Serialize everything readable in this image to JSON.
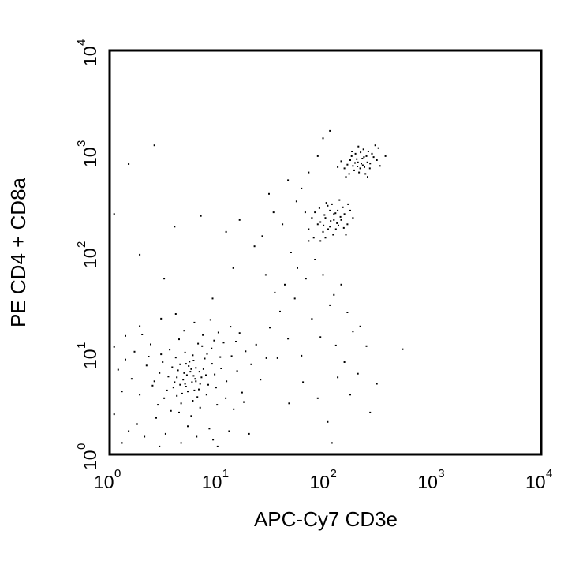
{
  "chart_data": {
    "type": "scatter",
    "title": "",
    "xlabel": "APC-Cy7 CD3e",
    "ylabel": "PE CD4 + CD8a",
    "xscale": "log",
    "yscale": "log",
    "xlim": [
      1,
      10000
    ],
    "ylim": [
      1,
      10000
    ],
    "grid": false,
    "legend": "none",
    "point_color": "#000000",
    "x_ticks": [
      {
        "base": "10",
        "exp": "0",
        "value": 1
      },
      {
        "base": "10",
        "exp": "1",
        "value": 10
      },
      {
        "base": "10",
        "exp": "2",
        "value": 100
      },
      {
        "base": "10",
        "exp": "3",
        "value": 1000
      },
      {
        "base": "10",
        "exp": "4",
        "value": 10000
      }
    ],
    "y_ticks": [
      {
        "base": "10",
        "exp": "0",
        "value": 1
      },
      {
        "base": "10",
        "exp": "1",
        "value": 10
      },
      {
        "base": "10",
        "exp": "2",
        "value": 100
      },
      {
        "base": "10",
        "exp": "3",
        "value": 1000
      },
      {
        "base": "10",
        "exp": "4",
        "value": 10000
      }
    ],
    "populations": [
      {
        "center_x": 6,
        "center_y": 6,
        "share": "majority"
      },
      {
        "center_x": 115,
        "center_y": 220,
        "share": "minor"
      },
      {
        "center_x": 200,
        "center_y": 780,
        "share": "minor"
      }
    ],
    "points": [
      [
        5.2,
        6.1
      ],
      [
        4.8,
        5.5
      ],
      [
        6.3,
        7.2
      ],
      [
        3.9,
        4.6
      ],
      [
        7.1,
        5.8
      ],
      [
        5.5,
        8.3
      ],
      [
        4.2,
        3.8
      ],
      [
        6.8,
        6.6
      ],
      [
        3.5,
        5.9
      ],
      [
        8.2,
        4.9
      ],
      [
        5.9,
        3.4
      ],
      [
        4.5,
        7.8
      ],
      [
        7.6,
        8.9
      ],
      [
        2.9,
        6.4
      ],
      [
        6.1,
        4.3
      ],
      [
        9.4,
        6.2
      ],
      [
        3.2,
        3.6
      ],
      [
        5.0,
        10.2
      ],
      [
        7.9,
        3.9
      ],
      [
        4.1,
        9.1
      ],
      [
        2.5,
        4.8
      ],
      [
        6.6,
        12.5
      ],
      [
        10.8,
        7.1
      ],
      [
        3.7,
        2.7
      ],
      [
        5.7,
        2.4
      ],
      [
        8.8,
        11.2
      ],
      [
        2.2,
        7.6
      ],
      [
        12.1,
        5.3
      ],
      [
        4.4,
        13.8
      ],
      [
        6.9,
        2.9
      ],
      [
        1.9,
        3.9
      ],
      [
        9.9,
        3.1
      ],
      [
        3.0,
        9.8
      ],
      [
        13.5,
        9.4
      ],
      [
        2.7,
        2.3
      ],
      [
        7.3,
        15.2
      ],
      [
        1.6,
        5.6
      ],
      [
        11.4,
        12.8
      ],
      [
        5.3,
        1.9
      ],
      [
        15.2,
        6.7
      ],
      [
        1.4,
        8.7
      ],
      [
        8.4,
        1.8
      ],
      [
        4.9,
        16.8
      ],
      [
        16.9,
        4.1
      ],
      [
        1.8,
        2.0
      ],
      [
        18.2,
        10.5
      ],
      [
        2.4,
        12.3
      ],
      [
        6.4,
        1.5
      ],
      [
        1.3,
        4.2
      ],
      [
        10.2,
        16.1
      ],
      [
        3.3,
        1.6
      ],
      [
        14.1,
        2.8
      ],
      [
        1.2,
        6.9
      ],
      [
        20.5,
        7.8
      ],
      [
        2.0,
        15.4
      ],
      [
        9.1,
        1.4
      ],
      [
        1.5,
        1.7
      ],
      [
        4.6,
        1.3
      ],
      [
        12.8,
        1.7
      ],
      [
        1.1,
        11.6
      ],
      [
        5.1,
        4.7
      ],
      [
        5.8,
        5.2
      ],
      [
        4.3,
        6.8
      ],
      [
        6.7,
        4.4
      ],
      [
        3.8,
        7.3
      ],
      [
        7.4,
        7.0
      ],
      [
        4.7,
        4.0
      ],
      [
        6.0,
        8.5
      ],
      [
        5.6,
        6.6
      ],
      [
        4.0,
        5.2
      ],
      [
        8.9,
        7.9
      ],
      [
        3.4,
        4.3
      ],
      [
        6.2,
        5.6
      ],
      [
        5.4,
        7.5
      ],
      [
        7.8,
        6.1
      ],
      [
        4.6,
        3.2
      ],
      [
        3.1,
        8.2
      ],
      [
        9.7,
        4.6
      ],
      [
        5.9,
        9.6
      ],
      [
        2.6,
        5.3
      ],
      [
        6.5,
        3.7
      ],
      [
        8.0,
        9.9
      ],
      [
        3.6,
        10.9
      ],
      [
        10.6,
        9.2
      ],
      [
        2.8,
        3.1
      ],
      [
        7.2,
        11.8
      ],
      [
        4.4,
        2.6
      ],
      [
        11.9,
        3.6
      ],
      [
        2.3,
        9.3
      ],
      [
        9.3,
        13.4
      ],
      [
        5.0,
        5.0
      ],
      [
        5.3,
        4.2
      ],
      [
        4.9,
        6.4
      ],
      [
        6.0,
        6.0
      ],
      [
        5.7,
        7.0
      ],
      [
        4.5,
        4.9
      ],
      [
        6.3,
        5.3
      ],
      [
        5.1,
        7.9
      ],
      [
        4.2,
        5.8
      ],
      [
        6.9,
        5.0
      ],
      [
        1.7,
        10.4
      ],
      [
        14.8,
        13.1
      ],
      [
        2.1,
        1.5
      ],
      [
        17.5,
        3.3
      ],
      [
        1.3,
        1.3
      ],
      [
        22.8,
        12.2
      ],
      [
        1.9,
        18.6
      ],
      [
        13.2,
        18.4
      ],
      [
        3.0,
        22.1
      ],
      [
        8.6,
        21.5
      ],
      [
        25.0,
        5.5
      ],
      [
        1.1,
        2.5
      ],
      [
        19.6,
        1.6
      ],
      [
        6.1,
        20.2
      ],
      [
        1.4,
        14.9
      ],
      [
        10.0,
        1.2
      ],
      [
        2.9,
        1.2
      ],
      [
        16.0,
        15.9
      ],
      [
        28.4,
        9.0
      ],
      [
        4.1,
        24.6
      ],
      [
        30.5,
        18.0
      ],
      [
        45.0,
        14.0
      ],
      [
        38.0,
        26.0
      ],
      [
        60.0,
        9.5
      ],
      [
        52.0,
        35.0
      ],
      [
        75.0,
        22.0
      ],
      [
        42.0,
        48.0
      ],
      [
        90.0,
        14.5
      ],
      [
        66.0,
        55.0
      ],
      [
        110.0,
        30.0
      ],
      [
        55.0,
        70.0
      ],
      [
        34.0,
        40.0
      ],
      [
        80.0,
        85.0
      ],
      [
        125.0,
        12.0
      ],
      [
        48.0,
        100.0
      ],
      [
        140.0,
        48.0
      ],
      [
        70.0,
        130.0
      ],
      [
        95.0,
        60.0
      ],
      [
        36.0,
        9.0
      ],
      [
        62.0,
        5.2
      ],
      [
        85.0,
        3.6
      ],
      [
        105.0,
        2.1
      ],
      [
        46.0,
        3.2
      ],
      [
        130.0,
        5.8
      ],
      [
        150.0,
        8.2
      ],
      [
        170.0,
        3.9
      ],
      [
        200.0,
        6.3
      ],
      [
        240.0,
        11.8
      ],
      [
        180.0,
        16.5
      ],
      [
        115.0,
        1.3
      ],
      [
        260.0,
        2.6
      ],
      [
        160.0,
        25.5
      ],
      [
        120.0,
        38.0
      ],
      [
        300.0,
        5.0
      ],
      [
        210.0,
        18.5
      ],
      [
        520.0,
        11.0
      ],
      [
        28.0,
        60.0
      ],
      [
        22.0,
        115.0
      ],
      [
        16.0,
        210.0
      ],
      [
        12.0,
        160.0
      ],
      [
        7.0,
        230.0
      ],
      [
        4.0,
        180.0
      ],
      [
        1.5,
        750.0
      ],
      [
        2.6,
        1150.0
      ],
      [
        1.1,
        240.0
      ],
      [
        1.9,
        95.0
      ],
      [
        3.2,
        55.0
      ],
      [
        9.0,
        35.0
      ],
      [
        14.0,
        70.0
      ],
      [
        26.0,
        145.0
      ],
      [
        33.0,
        250.0
      ],
      [
        40.0,
        190.0
      ],
      [
        54.0,
        320.0
      ],
      [
        60.0,
        430.0
      ],
      [
        70.0,
        620.0
      ],
      [
        45.0,
        520.0
      ],
      [
        30.0,
        380.0
      ],
      [
        85.0,
        900.0
      ],
      [
        95.0,
        1350.0
      ],
      [
        110.0,
        1600.0
      ],
      [
        100.0,
        220.0
      ],
      [
        120.0,
        240.0
      ],
      [
        90.0,
        200.0
      ],
      [
        130.0,
        260.0
      ],
      [
        110.0,
        180.0
      ],
      [
        140.0,
        210.0
      ],
      [
        80.0,
        250.0
      ],
      [
        105.0,
        290.0
      ],
      [
        125.0,
        170.0
      ],
      [
        95.0,
        160.0
      ],
      [
        150.0,
        240.0
      ],
      [
        115.0,
        300.0
      ],
      [
        85.0,
        190.0
      ],
      [
        135.0,
        330.0
      ],
      [
        100.0,
        140.0
      ],
      [
        160.0,
        190.0
      ],
      [
        75.0,
        220.0
      ],
      [
        145.0,
        280.0
      ],
      [
        120.0,
        210.0
      ],
      [
        110.0,
        260.0
      ],
      [
        90.0,
        130.0
      ],
      [
        170.0,
        260.0
      ],
      [
        70.0,
        170.0
      ],
      [
        155.0,
        150.0
      ],
      [
        128.0,
        195.0
      ],
      [
        98.0,
        235.0
      ],
      [
        112.0,
        205.0
      ],
      [
        138.0,
        225.0
      ],
      [
        88.0,
        275.0
      ],
      [
        118.0,
        150.0
      ],
      [
        180.0,
        220.0
      ],
      [
        65.0,
        250.0
      ],
      [
        102.0,
        310.0
      ],
      [
        148.0,
        175.0
      ],
      [
        78.0,
        140.0
      ],
      [
        124.0,
        245.0
      ],
      [
        96.0,
        185.0
      ],
      [
        132.0,
        185.0
      ],
      [
        106.0,
        170.0
      ],
      [
        162.0,
        300.0
      ],
      [
        200.0,
        780.0
      ],
      [
        220.0,
        850.0
      ],
      [
        180.0,
        720.0
      ],
      [
        240.0,
        900.0
      ],
      [
        210.0,
        680.0
      ],
      [
        170.0,
        820.0
      ],
      [
        260.0,
        760.0
      ],
      [
        190.0,
        950.0
      ],
      [
        230.0,
        700.0
      ],
      [
        250.0,
        1000.0
      ],
      [
        160.0,
        740.0
      ],
      [
        280.0,
        880.0
      ],
      [
        205.0,
        620.0
      ],
      [
        175.0,
        900.0
      ],
      [
        225.0,
        1050.0
      ],
      [
        300.0,
        820.0
      ],
      [
        150.0,
        680.0
      ],
      [
        215.0,
        760.0
      ],
      [
        195.0,
        840.0
      ],
      [
        245.0,
        780.0
      ],
      [
        185.0,
        650.0
      ],
      [
        270.0,
        950.0
      ],
      [
        140.0,
        800.0
      ],
      [
        235.0,
        600.0
      ],
      [
        310.0,
        1080.0
      ],
      [
        198.0,
        710.0
      ],
      [
        228.0,
        880.0
      ],
      [
        166.0,
        600.0
      ],
      [
        258.0,
        680.0
      ],
      [
        212.0,
        980.0
      ],
      [
        320.0,
        720.0
      ],
      [
        130.0,
        700.0
      ],
      [
        290.0,
        1150.0
      ],
      [
        176.0,
        1000.0
      ],
      [
        246.0,
        560.0
      ],
      [
        360.0,
        900.0
      ],
      [
        155.0,
        560.0
      ],
      [
        202.0,
        1120.0
      ],
      [
        188.0,
        770.0
      ],
      [
        222.0,
        730.0
      ]
    ]
  }
}
